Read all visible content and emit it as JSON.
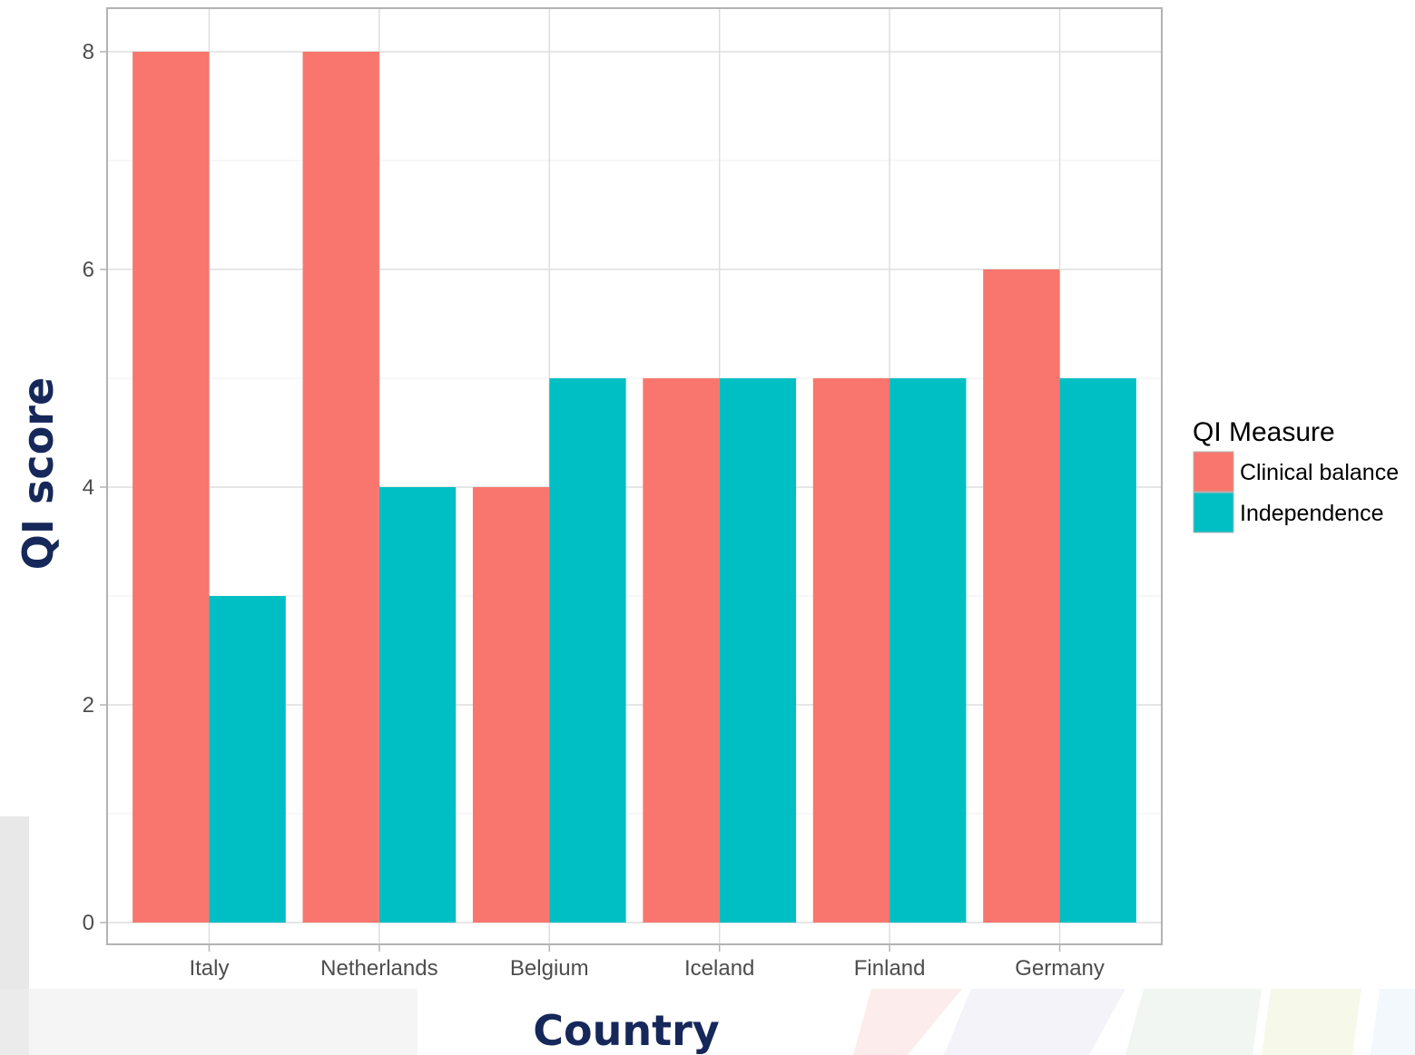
{
  "chart_data": {
    "type": "bar",
    "categories": [
      "Italy",
      "Netherlands",
      "Belgium",
      "Iceland",
      "Finland",
      "Germany"
    ],
    "series": [
      {
        "name": "Clinical balance",
        "color": "#f8766d",
        "values": [
          8,
          8,
          4,
          5,
          5,
          6
        ]
      },
      {
        "name": "Independence",
        "color": "#00bfc4",
        "values": [
          3,
          4,
          5,
          5,
          5,
          5
        ]
      }
    ],
    "xlabel": "Country",
    "ylabel": "QI score",
    "ylim": [
      -0.2,
      8.4
    ],
    "yticks": [
      "0",
      "2",
      "4",
      "6",
      "8"
    ],
    "grid": true,
    "legend": {
      "title": "QI Measure",
      "position": "right"
    }
  }
}
